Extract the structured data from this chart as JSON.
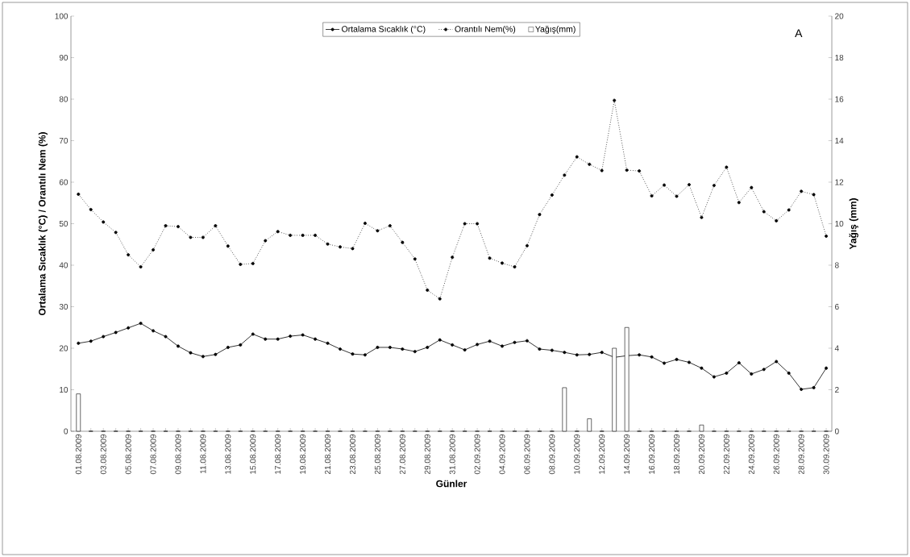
{
  "chart_data": {
    "type": "line",
    "xlabel": "Günler",
    "ylabel": "Ortalama Sıcaklık (°C) / Orantılı Nem (%)",
    "y2label": "Yağış (mm)",
    "categories": [
      "01.08.2009",
      null,
      "03.08.2009",
      null,
      "05.08.2009",
      null,
      "07.08.2009",
      null,
      "09.08.2009",
      null,
      "11.08.2009",
      null,
      "13.08.2009",
      null,
      "15.08.2009",
      null,
      "17.08.2009",
      null,
      "19.08.2009",
      null,
      "21.08.2009",
      null,
      "23.08.2009",
      null,
      "25.08.2009",
      null,
      "27.08.2009",
      null,
      "29.08.2009",
      null,
      "31.08.2009",
      null,
      "02.09.2009",
      null,
      "04.09.2009",
      null,
      "06.09.2009",
      null,
      "08.09.2009",
      null,
      "10.09.2009",
      null,
      "12.09.2009",
      null,
      "14.09.2009",
      null,
      "16.09.2009",
      null,
      "18.09.2009",
      null,
      "20.09.2009",
      null,
      "22.09.2009",
      null,
      "24.09.2009",
      null,
      "26.09.2009",
      null,
      "28.09.2009",
      null,
      "30.09.2009"
    ],
    "series": [
      {
        "name": "Ortalama Sıcaklık (°C)",
        "color": "#000000",
        "marker": "circle",
        "line_style": "solid",
        "values": [
          21.2,
          21.7,
          22.8,
          23.8,
          24.9,
          26.0,
          24.2,
          22.8,
          20.5,
          18.9,
          18.0,
          18.5,
          20.2,
          20.8,
          23.4,
          22.2,
          22.2,
          22.9,
          23.2,
          22.2,
          21.2,
          19.8,
          18.6,
          18.4,
          20.2,
          20.2,
          19.8,
          19.2,
          20.2,
          22.0,
          20.8,
          19.6,
          20.9,
          21.7,
          20.5,
          21.4,
          21.8,
          19.8,
          19.5,
          19.0,
          18.4,
          18.5,
          19.0,
          17.8,
          18.2,
          18.4,
          17.9,
          16.4,
          17.3,
          16.6,
          15.2,
          13.1,
          14.0,
          16.5,
          13.8,
          14.9,
          16.8,
          14.0,
          10.1,
          10.5,
          15.2
        ]
      },
      {
        "name": "Orantılı Nem(%)",
        "color": "#000000",
        "marker": "circle",
        "line_style": "dotted",
        "values": [
          57.1,
          53.4,
          50.4,
          47.9,
          42.5,
          39.6,
          43.7,
          49.5,
          49.3,
          46.7,
          46.7,
          49.5,
          44.6,
          40.2,
          40.4,
          45.9,
          48.1,
          47.2,
          47.2,
          47.2,
          45.1,
          44.4,
          44.0,
          50.1,
          48.3,
          49.5,
          45.5,
          41.5,
          34.0,
          31.9,
          41.9,
          50.0,
          50.0,
          41.7,
          40.5,
          39.6,
          44.7,
          52.2,
          56.9,
          61.7,
          66.1,
          64.3,
          62.8,
          79.7,
          62.9,
          62.7,
          56.7,
          59.3,
          56.6,
          59.4,
          51.5,
          59.2,
          63.6,
          55.1,
          58.7,
          52.9,
          50.7,
          53.3,
          57.8,
          57.0,
          47.0
        ]
      },
      {
        "name": "Yağış(mm)",
        "type": "bar",
        "axis": "y2",
        "color": "#000000",
        "values": [
          1.8,
          0,
          0,
          0,
          0,
          0,
          0,
          0,
          0,
          0,
          0,
          0,
          0,
          0,
          0,
          0,
          0,
          0,
          0,
          0,
          0,
          0,
          0,
          0,
          0,
          0,
          0,
          0,
          0,
          0,
          0,
          0,
          0,
          0,
          0,
          0,
          0,
          0,
          0,
          2.1,
          0,
          0.6,
          0,
          4.0,
          5.0,
          0,
          0,
          0,
          0,
          0,
          0.3,
          0,
          0,
          0,
          0,
          0,
          0,
          0,
          0,
          0,
          0
        ]
      }
    ],
    "ylim": [
      0,
      100
    ],
    "yticks": [
      0,
      10,
      20,
      30,
      40,
      50,
      60,
      70,
      80,
      90,
      100
    ],
    "y2lim": [
      0,
      20
    ],
    "y2ticks": [
      0,
      2,
      4,
      6,
      8,
      10,
      12,
      14,
      16,
      18,
      20
    ],
    "legend": "top",
    "grid": false,
    "annotations": [
      "A"
    ]
  }
}
